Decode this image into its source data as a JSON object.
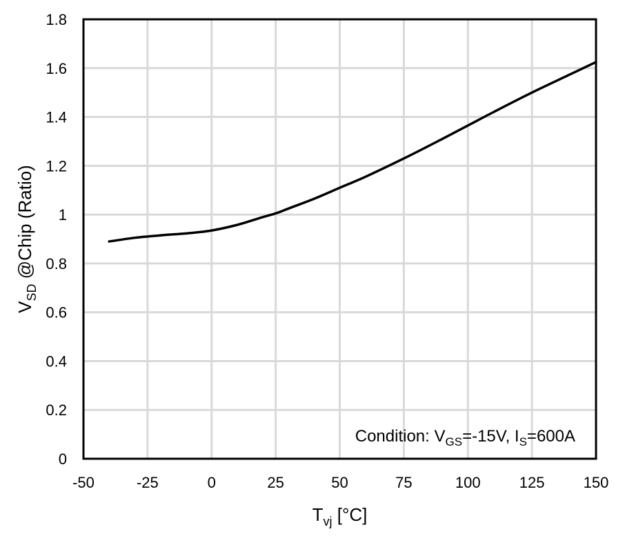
{
  "chart_data": {
    "type": "line",
    "xlabel": {
      "main": "T",
      "sub": "vj",
      "unit": " [°C]"
    },
    "ylabel": {
      "main": "V",
      "sub": "SD",
      "rest": " @Chip (Ratio)"
    },
    "xlim": [
      -50,
      150
    ],
    "ylim": [
      0,
      1.8
    ],
    "xticks": [
      -50,
      -25,
      0,
      25,
      50,
      75,
      100,
      125,
      150
    ],
    "yticks": [
      0,
      0.2,
      0.4,
      0.6,
      0.8,
      1,
      1.2,
      1.4,
      1.6,
      1.8
    ],
    "xtick_labels": [
      "-50",
      "-25",
      "0",
      "25",
      "50",
      "75",
      "100",
      "125",
      "150"
    ],
    "ytick_labels": [
      "0",
      "0.2",
      "0.4",
      "0.6",
      "0.8",
      "1",
      "1.2",
      "1.4",
      "1.6",
      "1.8"
    ],
    "grid": true,
    "annotation": {
      "prefix": "Condition: V",
      "sub1": "GS",
      "mid": "=-15V, I",
      "sub2": "S",
      "suffix": "=600A"
    },
    "series": [
      {
        "x": [
          -40,
          -30,
          -20,
          -10,
          0,
          10,
          20,
          25,
          30,
          40,
          50,
          60,
          75,
          90,
          100,
          110,
          125,
          140,
          150
        ],
        "y": [
          0.89,
          0.905,
          0.915,
          0.923,
          0.935,
          0.958,
          0.99,
          1.005,
          1.025,
          1.065,
          1.11,
          1.155,
          1.23,
          1.31,
          1.365,
          1.42,
          1.5,
          1.575,
          1.625
        ]
      }
    ]
  }
}
